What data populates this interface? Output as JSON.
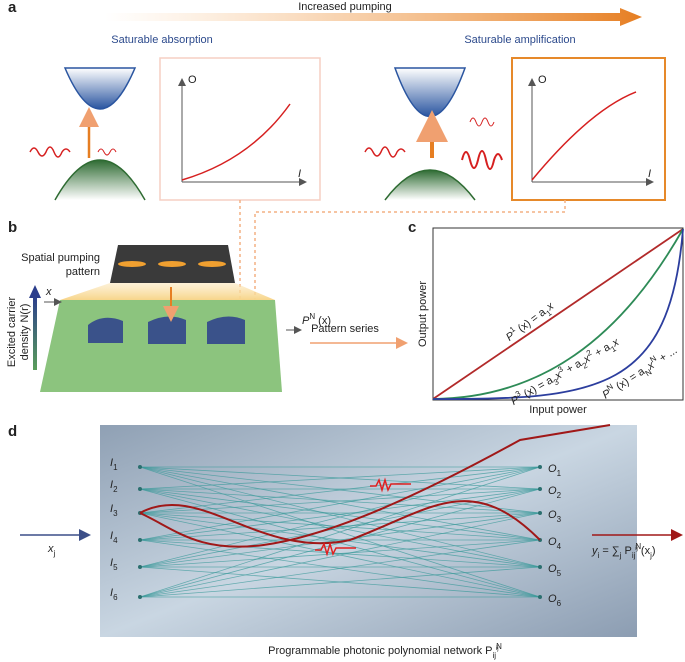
{
  "panels": {
    "a": "a",
    "b": "b",
    "c": "c",
    "d": "d"
  },
  "a": {
    "arrow_label": "Increased pumping",
    "left_title": "Saturable absorption",
    "right_title": "Saturable amplification",
    "left_plot": {
      "y_label": "O",
      "x_label": "I"
    },
    "right_plot": {
      "y_label": "O",
      "x_label": "I"
    }
  },
  "b": {
    "pattern_label": [
      "Spatial pumping",
      "pattern"
    ],
    "axis_label": [
      "Excited carrier",
      "density N(r)"
    ],
    "x_label": "x",
    "output_label": [
      {
        "text": "P"
      },
      {
        "text": "N",
        "pos": "sup"
      },
      {
        "text": " (x)"
      }
    ],
    "arrow_label": "Pattern series"
  },
  "c": {
    "y_label": "Output power",
    "x_label": "Input power",
    "curves": [
      [
        {
          "text": "P"
        },
        {
          "text": "1",
          "pos": "sup"
        },
        {
          "text": " (x) = a"
        },
        {
          "text": "1",
          "pos": "sub"
        },
        {
          "text": "x"
        }
      ],
      [
        {
          "text": "P"
        },
        {
          "text": "3",
          "pos": "sup"
        },
        {
          "text": " (x) = a"
        },
        {
          "text": "3",
          "pos": "sub"
        },
        {
          "text": "x"
        },
        {
          "text": "3",
          "pos": "sup"
        },
        {
          "text": " + a"
        },
        {
          "text": "2",
          "pos": "sub"
        },
        {
          "text": "x"
        },
        {
          "text": "2",
          "pos": "sup"
        },
        {
          "text": " + a"
        },
        {
          "text": "1",
          "pos": "sub"
        },
        {
          "text": "x"
        }
      ],
      [
        {
          "text": "P"
        },
        {
          "text": "N",
          "pos": "sup"
        },
        {
          "text": " (x) = a"
        },
        {
          "text": "N",
          "pos": "sub"
        },
        {
          "text": "x"
        },
        {
          "text": "N",
          "pos": "sup"
        },
        {
          "text": " + ..."
        }
      ]
    ]
  },
  "d": {
    "inputs": [
      [
        {
          "text": "I"
        },
        {
          "text": "1",
          "pos": "sub"
        }
      ],
      [
        {
          "text": "I"
        },
        {
          "text": "2",
          "pos": "sub"
        }
      ],
      [
        {
          "text": "I"
        },
        {
          "text": "3",
          "pos": "sub"
        }
      ],
      [
        {
          "text": "I"
        },
        {
          "text": "4",
          "pos": "sub"
        }
      ],
      [
        {
          "text": "I"
        },
        {
          "text": "5",
          "pos": "sub"
        }
      ],
      [
        {
          "text": "I"
        },
        {
          "text": "6",
          "pos": "sub"
        }
      ]
    ],
    "outputs": [
      [
        {
          "text": "O"
        },
        {
          "text": "1",
          "pos": "sub"
        }
      ],
      [
        {
          "text": "O"
        },
        {
          "text": "2",
          "pos": "sub"
        }
      ],
      [
        {
          "text": "O"
        },
        {
          "text": "3",
          "pos": "sub"
        }
      ],
      [
        {
          "text": "O"
        },
        {
          "text": "4",
          "pos": "sub"
        }
      ],
      [
        {
          "text": "O"
        },
        {
          "text": "5",
          "pos": "sub"
        }
      ],
      [
        {
          "text": "O"
        },
        {
          "text": "6",
          "pos": "sub"
        }
      ]
    ],
    "input_label": [
      {
        "text": "x"
      },
      {
        "text": "j",
        "pos": "sub"
      }
    ],
    "output_label": [
      {
        "text": "y"
      },
      {
        "text": "i",
        "pos": "sub"
      },
      {
        "text": " = ∑"
      },
      {
        "text": "j",
        "pos": "sub"
      },
      {
        "text": " P"
      },
      {
        "text": "ij",
        "pos": "sub"
      },
      {
        "text": "N",
        "pos": "sup"
      },
      {
        "text": "ij",
        "pos": "sup2"
      },
      {
        "text": " (x"
      },
      {
        "text": "j",
        "pos": "sub"
      },
      {
        "text": ")"
      }
    ],
    "caption": [
      {
        "text": "Programmable photonic polynomial network P"
      },
      {
        "text": "ij",
        "pos": "sub"
      },
      {
        "text": "N",
        "pos": "sup"
      },
      {
        "text": "ij",
        "pos": "sup2"
      }
    ]
  }
}
